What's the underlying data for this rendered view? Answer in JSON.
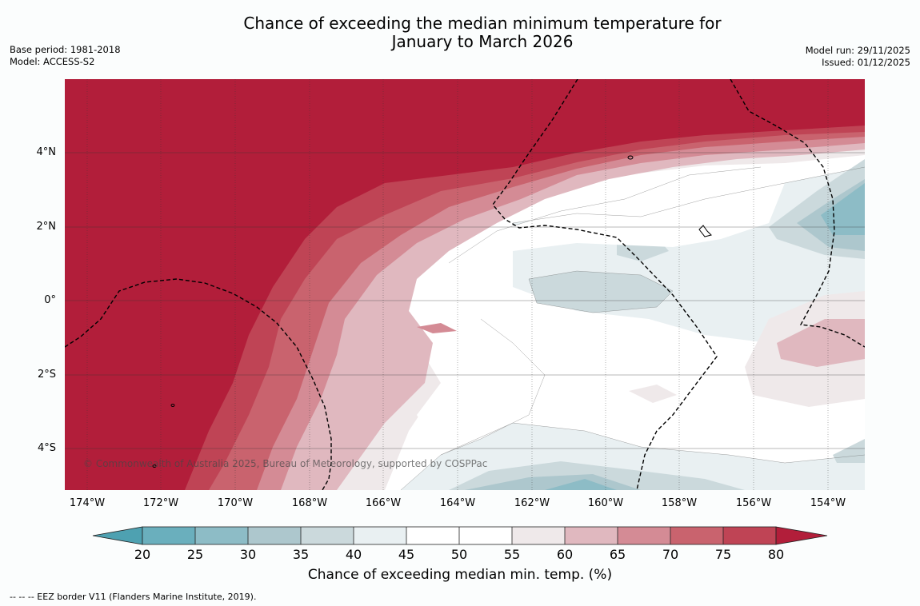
{
  "header": {
    "title_line1": "Chance of exceeding the median minimum temperature for",
    "title_line2": "January to March 2026",
    "base_period": "Base period: 1981-2018",
    "model": "Model: ACCESS-S2",
    "model_run": "Model run: 29/11/2025",
    "issued": "Issued: 01/12/2025"
  },
  "map": {
    "lat_labels": [
      "4°N",
      "2°N",
      "0°",
      "2°S",
      "4°S"
    ],
    "lon_labels": [
      "174°W",
      "172°W",
      "170°W",
      "168°W",
      "166°W",
      "164°W",
      "162°W",
      "160°W",
      "158°W",
      "156°W",
      "154°W"
    ],
    "copyright": "© Commonwealth of Australia 2025, Bureau of Meteorology, supported by COSPPac"
  },
  "colorbar": {
    "ticks": [
      "20",
      "25",
      "30",
      "35",
      "40",
      "45",
      "50",
      "55",
      "60",
      "65",
      "70",
      "75",
      "80"
    ],
    "colors": {
      "below20": "#4ea1b1",
      "c20_25": "#6aafbd",
      "c25_30": "#8dbcc6",
      "c30_35": "#adc7cd",
      "c35_40": "#cbd9dc",
      "c40_45": "#e9f0f2",
      "c45_50": "#ffffff",
      "c50_55": "#ffffff",
      "c55_60": "#efe9ea",
      "c60_65": "#e0b8bf",
      "c65_70": "#d48b95",
      "c70_75": "#c9636e",
      "c75_80": "#bf4455",
      "above80": "#b21e3a"
    },
    "label": "Chance of exceeding median min. temp. (%)"
  },
  "footnote": "--  --  -- EEZ border V11 (Flanders Marine Institute, 2019)."
}
